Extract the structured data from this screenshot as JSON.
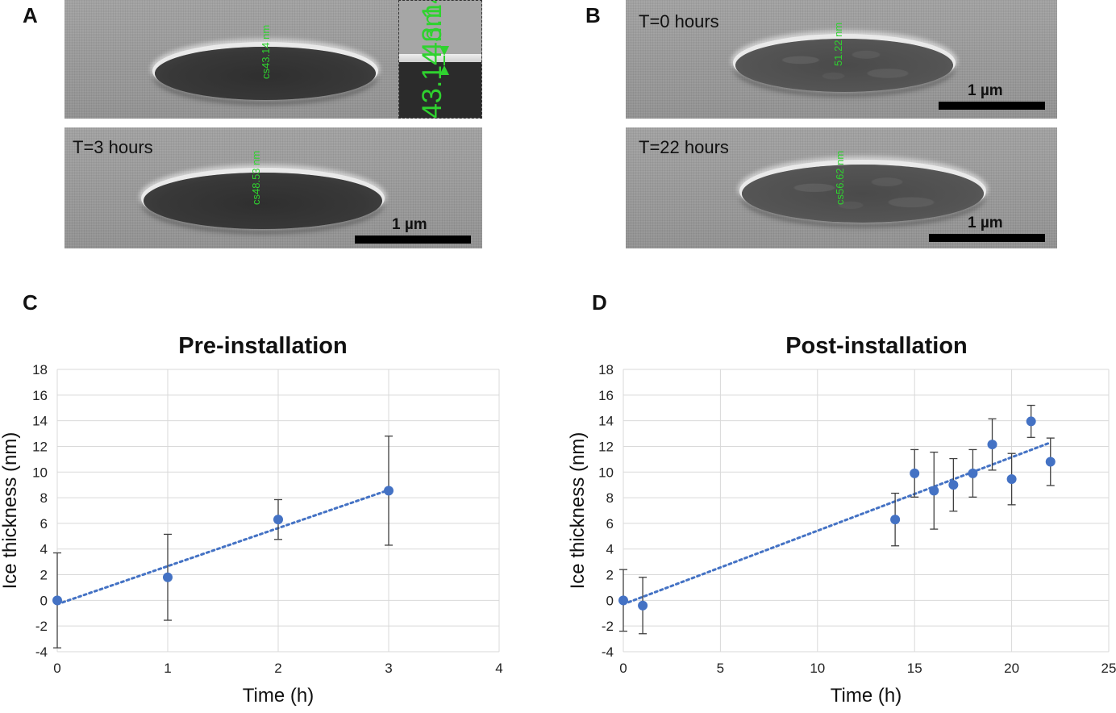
{
  "panels": {
    "a": {
      "letter": "A",
      "top": {
        "measurement": "cs43.14 nm",
        "inset_measurement": "43.14 nm"
      },
      "bottom": {
        "time_label": "T=3 hours",
        "measurement": "cs48.53 nm",
        "scalebar": "1 µm"
      }
    },
    "b": {
      "letter": "B",
      "top": {
        "time_label": "T=0 hours",
        "measurement": "51.22 nm",
        "scalebar": "1 µm"
      },
      "bottom": {
        "time_label": "T=22 hours",
        "measurement": "cs56.62 nm",
        "scalebar": "1 µm"
      }
    },
    "c": {
      "letter": "C"
    },
    "d": {
      "letter": "D"
    }
  },
  "colors": {
    "measurement": "#2fd22f",
    "point": "#4472c4",
    "trend": "#4472c4",
    "error": "#404040",
    "grid": "#d9d9d9"
  },
  "chart_data": [
    {
      "type": "scatter",
      "title": "Pre-installation",
      "xlabel": "Time (h)",
      "ylabel": "Ice thickness (nm)",
      "xlim": [
        0,
        4
      ],
      "ylim": [
        -4,
        18
      ],
      "xticks": [
        0,
        1,
        2,
        3,
        4
      ],
      "yticks": [
        -4,
        -2,
        0,
        2,
        4,
        6,
        8,
        10,
        12,
        14,
        16,
        18
      ],
      "grid": true,
      "trendline": "linear, dotted",
      "points": [
        {
          "x": 0,
          "y": 0,
          "err": 3.7
        },
        {
          "x": 1,
          "y": 1.8,
          "err": 3.35
        },
        {
          "x": 2,
          "y": 6.3,
          "err": 1.55
        },
        {
          "x": 3,
          "y": 8.55,
          "err": 4.25
        }
      ],
      "trend": {
        "x": [
          0,
          3
        ],
        "y": [
          -0.3,
          8.6
        ]
      }
    },
    {
      "type": "scatter",
      "title": "Post-installation",
      "xlabel": "Time (h)",
      "ylabel": "Ice thickness (nm)",
      "xlim": [
        0,
        25
      ],
      "ylim": [
        -4,
        18
      ],
      "xticks": [
        0,
        5,
        10,
        15,
        20,
        25
      ],
      "yticks": [
        -4,
        -2,
        0,
        2,
        4,
        6,
        8,
        10,
        12,
        14,
        16,
        18
      ],
      "grid": true,
      "trendline": "linear, dotted",
      "points": [
        {
          "x": 0,
          "y": 0,
          "err": 2.4
        },
        {
          "x": 1,
          "y": -0.4,
          "err": 2.2
        },
        {
          "x": 14,
          "y": 6.3,
          "err": 2.05
        },
        {
          "x": 15,
          "y": 9.9,
          "err": 1.85
        },
        {
          "x": 16,
          "y": 8.55,
          "err": 3.0
        },
        {
          "x": 17,
          "y": 9.0,
          "err": 2.05
        },
        {
          "x": 18,
          "y": 9.9,
          "err": 1.85
        },
        {
          "x": 19,
          "y": 12.15,
          "err": 2.0
        },
        {
          "x": 20,
          "y": 9.45,
          "err": 2.0
        },
        {
          "x": 21,
          "y": 13.95,
          "err": 1.25
        },
        {
          "x": 22,
          "y": 10.8,
          "err": 1.85
        }
      ],
      "trend": {
        "x": [
          0,
          22
        ],
        "y": [
          -0.3,
          12.3
        ]
      }
    }
  ]
}
